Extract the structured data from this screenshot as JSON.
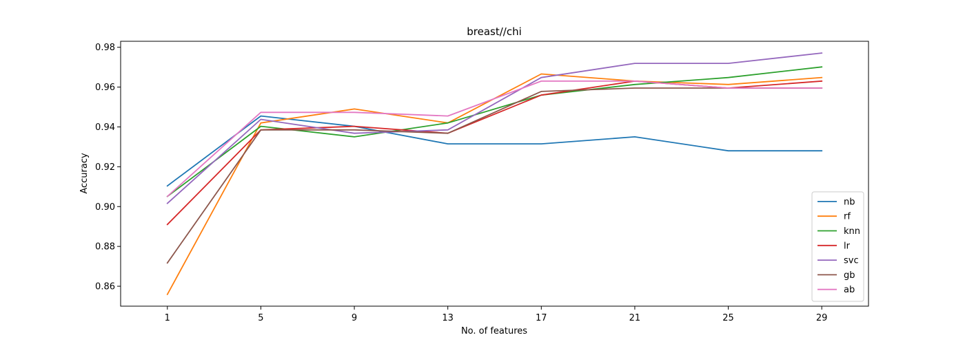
{
  "chart_data": {
    "type": "line",
    "title": "breast//chi",
    "xlabel": "No. of features",
    "ylabel": "Accuracy",
    "x": [
      1,
      5,
      9,
      13,
      17,
      21,
      25,
      29
    ],
    "xlim": [
      -1,
      31
    ],
    "ylim": [
      0.85,
      0.983
    ],
    "yticks": [
      0.86,
      0.88,
      0.9,
      0.92,
      0.94,
      0.96,
      0.98
    ],
    "ytick_labels": [
      "0.86",
      "0.88",
      "0.90",
      "0.92",
      "0.94",
      "0.96",
      "0.98"
    ],
    "grid": false,
    "legend_position": "lower-right",
    "series": [
      {
        "name": "nb",
        "color": "#1f77b4",
        "values": [
          0.9104,
          0.9455,
          0.9403,
          0.9315,
          0.9315,
          0.935,
          0.928,
          0.928
        ]
      },
      {
        "name": "rf",
        "color": "#ff7f0e",
        "values": [
          0.8559,
          0.942,
          0.949,
          0.942,
          0.9666,
          0.963,
          0.9613,
          0.9648
        ]
      },
      {
        "name": "knn",
        "color": "#2ca02c",
        "values": [
          0.9051,
          0.9403,
          0.935,
          0.942,
          0.956,
          0.9613,
          0.9648,
          0.9701
        ]
      },
      {
        "name": "lr",
        "color": "#d62728",
        "values": [
          0.891,
          0.9385,
          0.9403,
          0.9368,
          0.956,
          0.963,
          0.9595,
          0.963
        ]
      },
      {
        "name": "svc",
        "color": "#9467bd",
        "values": [
          0.9016,
          0.9438,
          0.9368,
          0.9385,
          0.9648,
          0.9719,
          0.9719,
          0.9771
        ]
      },
      {
        "name": "gb",
        "color": "#8c564b",
        "values": [
          0.8717,
          0.9385,
          0.9385,
          0.9368,
          0.9578,
          0.9595,
          0.9595,
          0.9595
        ]
      },
      {
        "name": "ab",
        "color": "#e377c2",
        "values": [
          0.9051,
          0.9473,
          0.9473,
          0.9455,
          0.963,
          0.963,
          0.9595,
          0.9595
        ]
      }
    ]
  }
}
